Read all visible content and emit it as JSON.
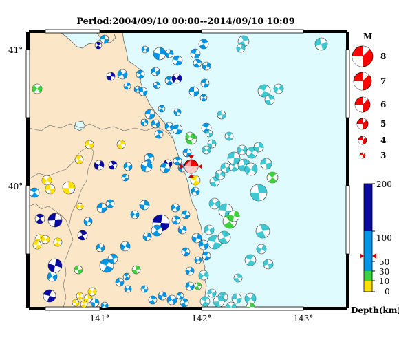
{
  "title": "Period:2004/09/10 00:00--2014/09/10 10:09",
  "map": {
    "lon_labels": [
      "141°",
      "142°",
      "143°"
    ],
    "lat_labels": [
      "41°",
      "40°"
    ],
    "colors": {
      "land": "#fbe6c8",
      "sea": "#e0fbfd",
      "main_event": "#ff0000"
    }
  },
  "magnitude_legend": {
    "header": "M",
    "items": [
      {
        "label": "8",
        "mag": 8
      },
      {
        "label": "7",
        "mag": 7
      },
      {
        "label": "6",
        "mag": 6
      },
      {
        "label": "5",
        "mag": 5
      },
      {
        "label": "4",
        "mag": 4
      },
      {
        "label": "3",
        "mag": 3
      }
    ]
  },
  "depth_scale": {
    "title": "Depth(km)",
    "ticks": [
      "200",
      "100",
      "50",
      "30",
      "10",
      "0"
    ],
    "bands": [
      {
        "from": 0,
        "to": 10,
        "color": "#ffe000"
      },
      {
        "from": 10,
        "to": 30,
        "color": "#3ed23e"
      },
      {
        "from": 30,
        "to": 100,
        "color": "#0096e6"
      },
      {
        "from": 100,
        "to": 200,
        "color": "#0a0aa0"
      }
    ]
  }
}
